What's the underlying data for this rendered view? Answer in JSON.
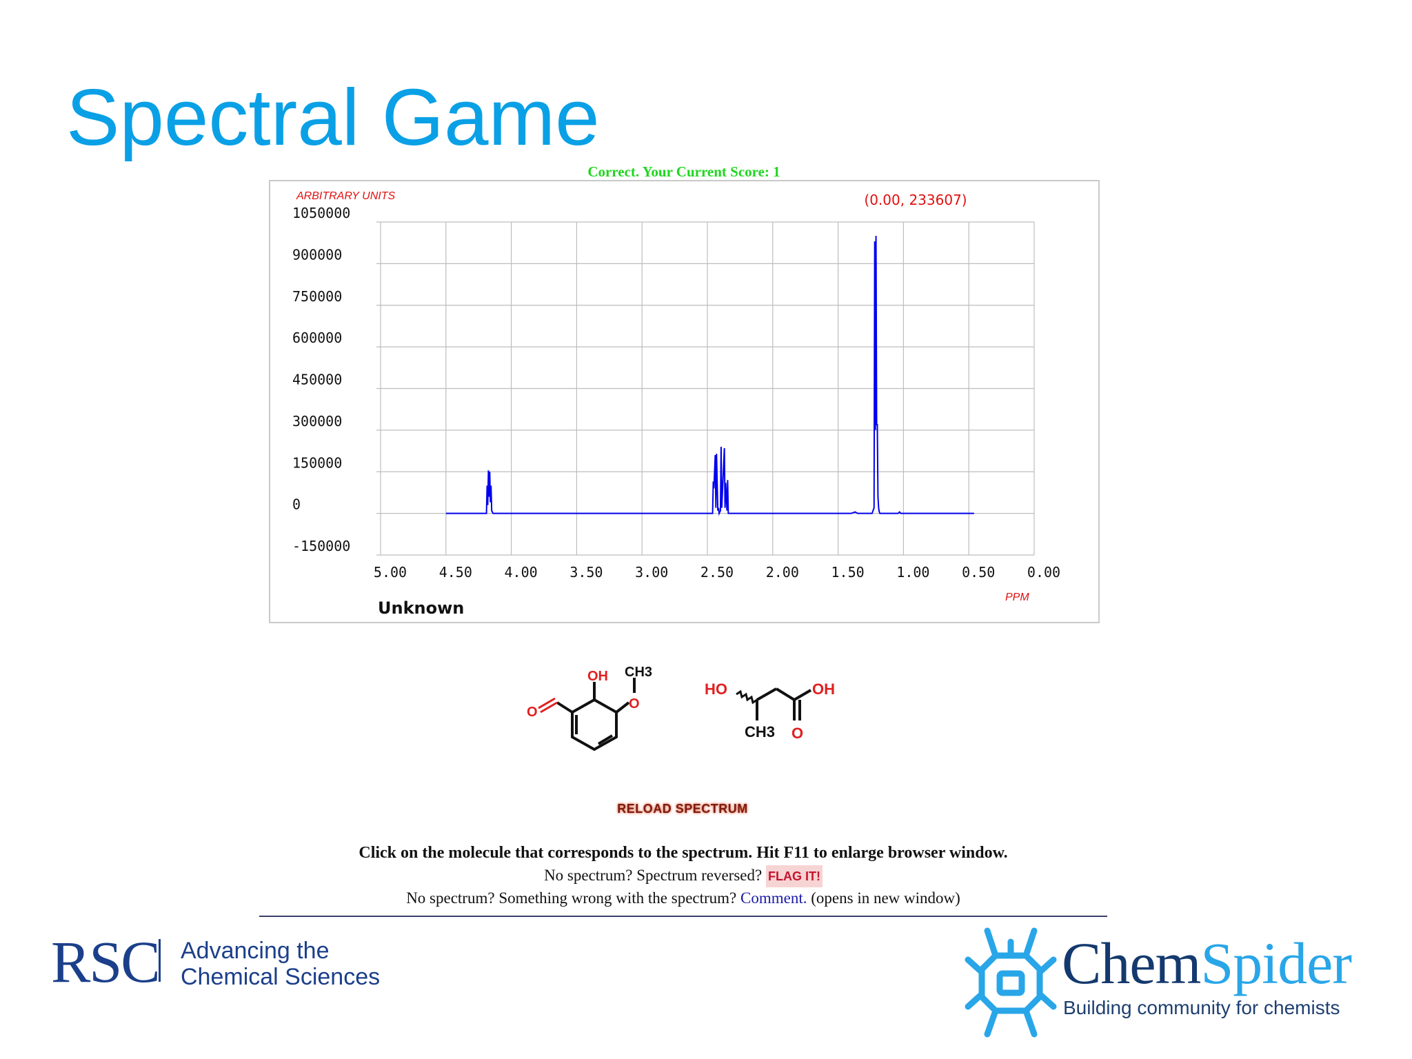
{
  "slide": {
    "title": "Spectral Game"
  },
  "game": {
    "score_text": "Correct. Your Current Score: 1",
    "reload_label": "RELOAD SPECTRUM",
    "instruction": "Click on the molecule that corresponds to the spectrum. Hit F11 to enlarge browser window.",
    "flag_prefix": "No spectrum? Spectrum reversed?",
    "flag_label": "FLAG IT!",
    "comment_prefix": "No spectrum? Something wrong with the spectrum?",
    "comment_label": "Comment.",
    "comment_suffix": "(opens in new window)"
  },
  "chart_data": {
    "type": "line",
    "ylabel": "ARBITRARY UNITS",
    "xlabel": "PPM",
    "cursor_readout": "(0.00, 233607)",
    "sample_label": "Unknown",
    "x_reversed": true,
    "xlim": [
      5.0,
      0.0
    ],
    "ylim": [
      -150000,
      1050000
    ],
    "grid": true,
    "x_ticks": [
      "5.00",
      "4.50",
      "4.00",
      "3.50",
      "3.00",
      "2.50",
      "2.00",
      "1.50",
      "1.00",
      "0.50",
      "0.00"
    ],
    "y_ticks": [
      "1050000",
      "900000",
      "750000",
      "600000",
      "450000",
      "300000",
      "150000",
      "0",
      "-150000"
    ],
    "series": [
      {
        "color": "#0000ee",
        "x": [
          4.5,
          4.19,
          4.185,
          4.18,
          4.175,
          4.17,
          4.165,
          4.16,
          4.155,
          4.15,
          4.14,
          4.1,
          2.46,
          2.455,
          2.45,
          2.44,
          2.435,
          2.43,
          2.42,
          2.415,
          2.41,
          2.4,
          2.395,
          2.39,
          2.37,
          2.365,
          2.36,
          2.35,
          2.345,
          2.34,
          2.33,
          2.325,
          2.32,
          2.31,
          2.305,
          2.3,
          2.29,
          1.4,
          1.37,
          1.35,
          1.24,
          1.225,
          1.22,
          1.215,
          1.21,
          1.205,
          1.2,
          1.195,
          1.19,
          1.185,
          1.18,
          1.17,
          1.12,
          1.1,
          1.04,
          1.03,
          1.02,
          0.46
        ],
        "y": [
          0,
          0,
          100000,
          30000,
          155000,
          60000,
          150000,
          40000,
          100000,
          10000,
          0,
          0,
          0,
          115000,
          90000,
          210000,
          20000,
          215000,
          10000,
          20000,
          0,
          10000,
          240000,
          20000,
          235000,
          20000,
          110000,
          10000,
          120000,
          0,
          0,
          0,
          0,
          0,
          0,
          0,
          0,
          0,
          5000,
          0,
          0,
          20000,
          980000,
          300000,
          1000000,
          320000,
          320000,
          60000,
          20000,
          5000,
          0,
          0,
          0,
          0,
          0,
          5000,
          0,
          0
        ]
      }
    ]
  },
  "molecules": [
    {
      "id": "option-1",
      "labels": {
        "oh": "OH",
        "ch3": "CH3",
        "o_methoxy": "O",
        "o_aldehyde": "O"
      }
    },
    {
      "id": "option-2",
      "labels": {
        "ho": "HO",
        "oh": "OH",
        "ch3": "CH3",
        "o_carbonyl": "O"
      }
    }
  ],
  "branding": {
    "rsc_mark": "RSC",
    "rsc_tagline_1": "Advancing the",
    "rsc_tagline_2": "Chemical Sciences",
    "cs_chem": "Chem",
    "cs_spider": "Spider",
    "cs_tagline": "Building community for chemists",
    "colors": {
      "title_blue": "#0aa0e6",
      "rsc_navy": "#1b3f8a",
      "cs_dark": "#14396e",
      "cs_light": "#29a6e8",
      "spectrum_blue": "#0000ee",
      "axis_label_red": "#e01010"
    }
  }
}
